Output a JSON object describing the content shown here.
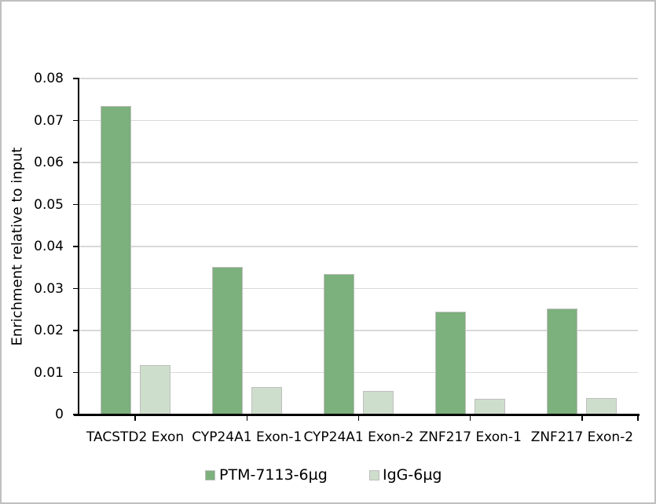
{
  "chart_data": {
    "type": "bar",
    "title": "",
    "categories": [
      "TACSTD2 Exon",
      "CYP24A1 Exon-1",
      "CYP24A1 Exon-2",
      "ZNF217 Exon-1",
      "ZNF217 Exon-2"
    ],
    "series": [
      {
        "name": "PTM-7113-6µg",
        "color": "#7cb07c",
        "border_color": "#bfbfbf",
        "values": [
          0.0735,
          0.0351,
          0.0334,
          0.0245,
          0.0253
        ]
      },
      {
        "name": "IgG-6µg",
        "color": "#cedecc",
        "border_color": "#bfbfbf",
        "values": [
          0.0118,
          0.0066,
          0.0057,
          0.0037,
          0.004
        ]
      }
    ],
    "xlabel": "",
    "ylabel": "Enrichment relative to input",
    "ylim": [
      0,
      0.08
    ],
    "ytick_step": 0.01,
    "ytick_labels": [
      "0",
      "0.01",
      "0.02",
      "0.03",
      "0.04",
      "0.05",
      "0.06",
      "0.07",
      "0.08"
    ],
    "grid": true,
    "gridline_color": "#d9d9d9",
    "axis_color": "#000000",
    "legend_position": "bottom",
    "frame_border_color": "#bfbfbf",
    "background_color": "#ffffff"
  }
}
